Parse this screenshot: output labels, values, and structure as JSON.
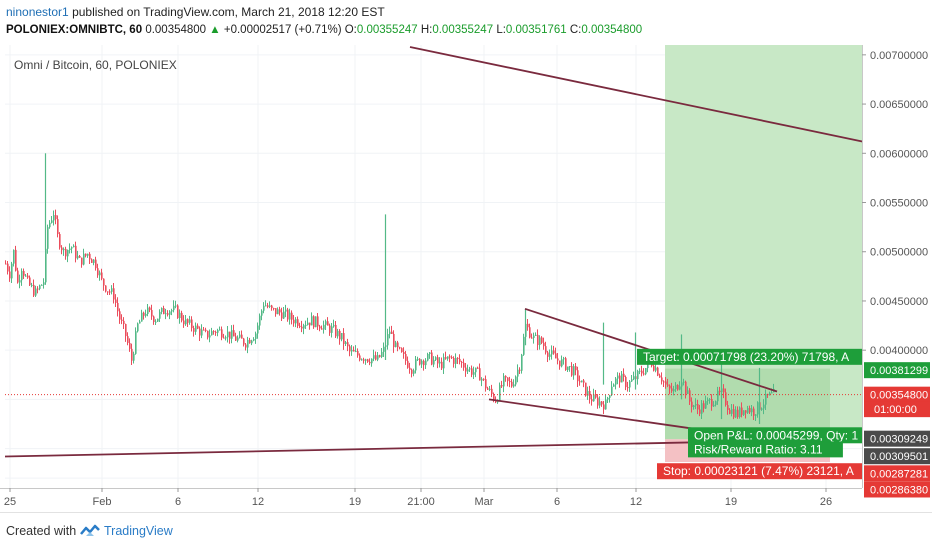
{
  "header": {
    "author": "ninonestor1",
    "published_text": "published on TradingView.com, March 21, 2018 12:20 EST",
    "symbol": "POLONIEX:OMNIBTC, 60",
    "last_price": "0.00354800",
    "change_arrow": "▲",
    "change": "+0.00002517 (+0.71%)",
    "o_label": "O:",
    "o_value": "0.00355247",
    "h_label": "H:",
    "h_value": "0.00355247",
    "l_label": "L:",
    "l_value": "0.00351761",
    "c_label": "C:",
    "c_value": "0.00354800"
  },
  "chart_data": {
    "type": "candlestick",
    "title": "Omni / Bitcoin, 60, POLONIEX",
    "ylim": [
      0.0026,
      0.0071
    ],
    "x_ticks": [
      "25",
      "Feb",
      "6",
      "12",
      "19",
      "21:00",
      "Mar",
      "6",
      "12",
      "19",
      "26"
    ],
    "y_ticks": [
      "0.00700000",
      "0.00650000",
      "0.00600000",
      "0.00550000",
      "0.00500000",
      "0.00450000",
      "0.00400000"
    ],
    "price_path": [
      [
        0,
        0.00488
      ],
      [
        4,
        0.00478
      ],
      [
        8,
        0.005
      ],
      [
        12,
        0.00468
      ],
      [
        16,
        0.00485
      ],
      [
        22,
        0.00468
      ],
      [
        30,
        0.00458
      ],
      [
        38,
        0.0047
      ],
      [
        42,
        0.00525
      ],
      [
        48,
        0.0054
      ],
      [
        52,
        0.00515
      ],
      [
        58,
        0.005
      ],
      [
        66,
        0.00505
      ],
      [
        74,
        0.0049
      ],
      [
        82,
        0.00498
      ],
      [
        90,
        0.00488
      ],
      [
        96,
        0.0047
      ],
      [
        102,
        0.00462
      ],
      [
        108,
        0.00456
      ],
      [
        114,
        0.00432
      ],
      [
        120,
        0.00415
      ],
      [
        126,
        0.0039
      ],
      [
        132,
        0.00425
      ],
      [
        140,
        0.0044
      ],
      [
        150,
        0.00432
      ],
      [
        160,
        0.00442
      ],
      [
        170,
        0.0044
      ],
      [
        180,
        0.00428
      ],
      [
        190,
        0.00422
      ],
      [
        200,
        0.00415
      ],
      [
        210,
        0.0042
      ],
      [
        220,
        0.00418
      ],
      [
        230,
        0.00412
      ],
      [
        240,
        0.00408
      ],
      [
        250,
        0.00418
      ],
      [
        258,
        0.00448
      ],
      [
        266,
        0.0044
      ],
      [
        276,
        0.00438
      ],
      [
        286,
        0.00432
      ],
      [
        296,
        0.00428
      ],
      [
        306,
        0.0043
      ],
      [
        318,
        0.00425
      ],
      [
        328,
        0.0042
      ],
      [
        336,
        0.00412
      ],
      [
        344,
        0.00398
      ],
      [
        352,
        0.00395
      ],
      [
        362,
        0.00392
      ],
      [
        372,
        0.0039
      ],
      [
        378,
        0.004
      ],
      [
        384,
        0.0042
      ],
      [
        390,
        0.00402
      ],
      [
        398,
        0.00392
      ],
      [
        406,
        0.00382
      ],
      [
        414,
        0.0039
      ],
      [
        424,
        0.00392
      ],
      [
        434,
        0.00385
      ],
      [
        444,
        0.00392
      ],
      [
        454,
        0.00388
      ],
      [
        464,
        0.0038
      ],
      [
        474,
        0.00375
      ],
      [
        482,
        0.0036
      ],
      [
        490,
        0.0035
      ],
      [
        498,
        0.00368
      ],
      [
        506,
        0.00365
      ],
      [
        514,
        0.00385
      ],
      [
        520,
        0.00425
      ],
      [
        528,
        0.00412
      ],
      [
        536,
        0.00408
      ],
      [
        544,
        0.00396
      ],
      [
        552,
        0.0039
      ],
      [
        560,
        0.00385
      ],
      [
        568,
        0.00378
      ],
      [
        576,
        0.00365
      ],
      [
        584,
        0.00352
      ],
      [
        592,
        0.00348
      ],
      [
        600,
        0.00345
      ],
      [
        606,
        0.00366
      ],
      [
        614,
        0.00372
      ],
      [
        622,
        0.00365
      ],
      [
        630,
        0.00372
      ],
      [
        638,
        0.0038
      ],
      [
        646,
        0.00388
      ],
      [
        654,
        0.00376
      ],
      [
        662,
        0.0036
      ],
      [
        668,
        0.00358
      ],
      [
        676,
        0.00372
      ],
      [
        684,
        0.00348
      ],
      [
        692,
        0.0034
      ],
      [
        700,
        0.00345
      ],
      [
        708,
        0.0035
      ],
      [
        716,
        0.00356
      ],
      [
        724,
        0.0034
      ],
      [
        732,
        0.00335
      ],
      [
        740,
        0.00342
      ],
      [
        748,
        0.00338
      ],
      [
        756,
        0.00345
      ],
      [
        762,
        0.00352
      ],
      [
        768,
        0.00355
      ]
    ],
    "spikes": [
      [
        40,
        0.00502,
        0.006
      ],
      [
        380,
        0.0039,
        0.00538
      ],
      [
        520,
        0.00405,
        0.00442
      ],
      [
        598,
        0.00365,
        0.00428
      ],
      [
        630,
        0.0036,
        0.00418
      ],
      [
        676,
        0.0035,
        0.00416
      ],
      [
        716,
        0.0033,
        0.00395
      ],
      [
        754,
        0.00325,
        0.00382
      ]
    ],
    "trendlines": [
      {
        "name": "upper-channel",
        "from": [
          405,
          0.00708
        ],
        "to": [
          862,
          0.00611
        ]
      },
      {
        "name": "lower-channel",
        "from": [
          0,
          0.00292
        ],
        "to": [
          862,
          0.0031
        ]
      },
      {
        "name": "triangle-top",
        "from": [
          520,
          0.00442
        ],
        "to": [
          772,
          0.00358
        ]
      },
      {
        "name": "triangle-bottom",
        "from": [
          484,
          0.0035
        ],
        "to": [
          690,
          0.0032
        ]
      }
    ],
    "last_price_line": 0.003548,
    "position": {
      "x_start": 665,
      "x_mid": 830,
      "x_end": 862,
      "entry": 0.00309501,
      "target": 0.00381299,
      "stop": 0.0028638,
      "profit_color": "#c8e8c6",
      "profit_strong_color": "#9ed29a",
      "loss_color": "#f4c1c4"
    },
    "price_labels": [
      {
        "text": "0.00381299",
        "y": 0.003797,
        "bg": "#1e9e3a",
        "fg": "#ffffff"
      },
      {
        "text": "0.00354800",
        "y": 0.003548,
        "bg": "#e53935",
        "fg": "#ffffff"
      },
      {
        "text": "01:00:00",
        "y": 0.003401,
        "bg": "#e53935",
        "fg": "#ffffff"
      },
      {
        "text": "0.00309249",
        "y": 0.003101,
        "bg": "#4a4a4a",
        "fg": "#ffffff"
      },
      {
        "text": "0.00309501",
        "y": 0.002923,
        "bg": "#4a4a4a",
        "fg": "#ffffff"
      },
      {
        "text": "0.00287281",
        "y": 0.002749,
        "bg": "#e53935",
        "fg": "#ffffff"
      },
      {
        "text": "0.00286380",
        "y": 0.002585,
        "bg": "#e53935",
        "fg": "#ffffff"
      }
    ],
    "annotations": [
      {
        "name": "target-label",
        "text": "Target: 0.00071798 (23.20%) 71798, A",
        "x": 637,
        "y": 0.003902,
        "bg": "#1e9e3a"
      },
      {
        "name": "pnl-label",
        "text": "Open P&L: 0.00045299, Qty: 1",
        "x": 688,
        "y": 0.003105,
        "bg": "#1e9e3a"
      },
      {
        "name": "rr-label",
        "text": "Risk/Reward Ratio: 3.11",
        "x": 688,
        "y": 0.002962,
        "bg": "#1e9e3a"
      },
      {
        "name": "stop-label",
        "text": "Stop: 0.00023121 (7.47%) 23121, A",
        "x": 657,
        "y": 0.00274,
        "bg": "#e53935"
      }
    ],
    "colors": {
      "up": "#53b987",
      "down": "#eb4d5c",
      "trendline": "#7a2a3e",
      "grid": "#f0f3f6",
      "axis": "#555555",
      "last_line": "#e53935"
    },
    "grid": true
  },
  "footer": {
    "created_with": "Created with",
    "brand": "TradingView"
  }
}
